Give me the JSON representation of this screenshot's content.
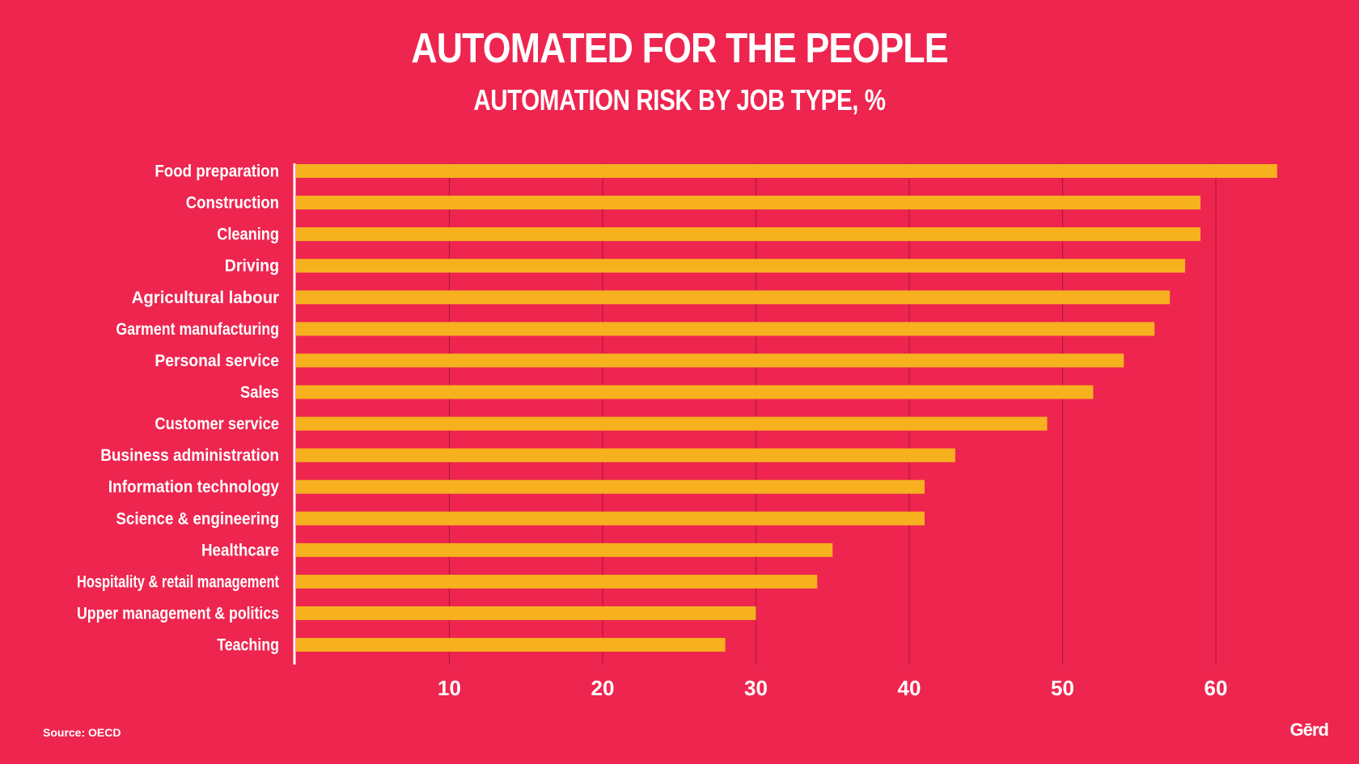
{
  "header": {
    "title": "AUTOMATED FOR THE PEOPLE",
    "subtitle": "AUTOMATION RISK BY JOB TYPE, %"
  },
  "footer": {
    "source": "Source: OECD",
    "logo": "Gērd"
  },
  "colors": {
    "background": "#ee254f",
    "bar": "#f7b11f",
    "gridline": "#b5163a",
    "axis": "#ffffff",
    "text": "#ffffff"
  },
  "chart_data": {
    "type": "bar",
    "orientation": "horizontal",
    "title": "AUTOMATED FOR THE PEOPLE",
    "subtitle": "AUTOMATION RISK BY JOB TYPE, %",
    "categories": [
      "Food preparation",
      "Construction",
      "Cleaning",
      "Driving",
      "Agricultural labour",
      "Garment manufacturing",
      "Personal service",
      "Sales",
      "Customer service",
      "Business administration",
      "Information technology",
      "Science & engineering",
      "Healthcare",
      "Hospitality & retail management",
      "Upper management & politics",
      "Teaching"
    ],
    "values": [
      64,
      59,
      59,
      58,
      57,
      56,
      54,
      52,
      49,
      43,
      41,
      41,
      35,
      34,
      30,
      28
    ],
    "xlim": [
      0,
      65
    ],
    "xticks": [
      10,
      20,
      30,
      40,
      50,
      60
    ],
    "grid": true,
    "source": "Source: OECD"
  }
}
